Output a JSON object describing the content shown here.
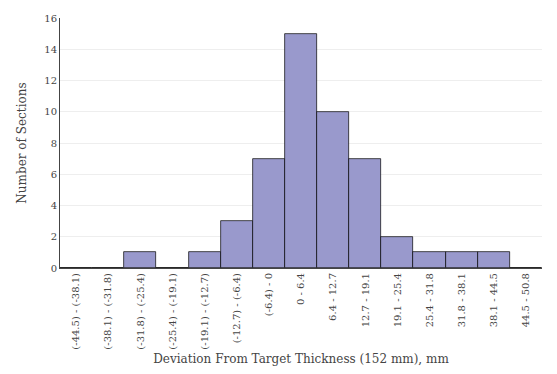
{
  "chart_data": {
    "type": "bar",
    "categories": [
      "(-44.5) - (-38.1)",
      "(-38.1) - (-31.8)",
      "(-31.8) - (-25.4)",
      "(-25.4) - (-19.1)",
      "(-19.1) - (-12.7)",
      "(-12.7) - (-6.4)",
      "(-6.4) - 0",
      "0 - 6.4",
      "6.4 - 12.7",
      "12.7 - 19.1",
      "19.1 - 25.4",
      "25.4 - 31.8",
      "31.8 - 38.1",
      "38.1 - 44.5",
      "44.5 - 50.8"
    ],
    "values": [
      0,
      0,
      1,
      0,
      1,
      3,
      7,
      15,
      10,
      7,
      2,
      1,
      1,
      1,
      0
    ],
    "color": "#9999cc",
    "xlabel": "Deviation From Target Thickness (152 mm), mm",
    "ylabel": "Number of Sections",
    "ylim": [
      0,
      16
    ],
    "yticks": [
      0,
      2,
      4,
      6,
      8,
      10,
      12,
      14,
      16
    ],
    "grid": true
  }
}
